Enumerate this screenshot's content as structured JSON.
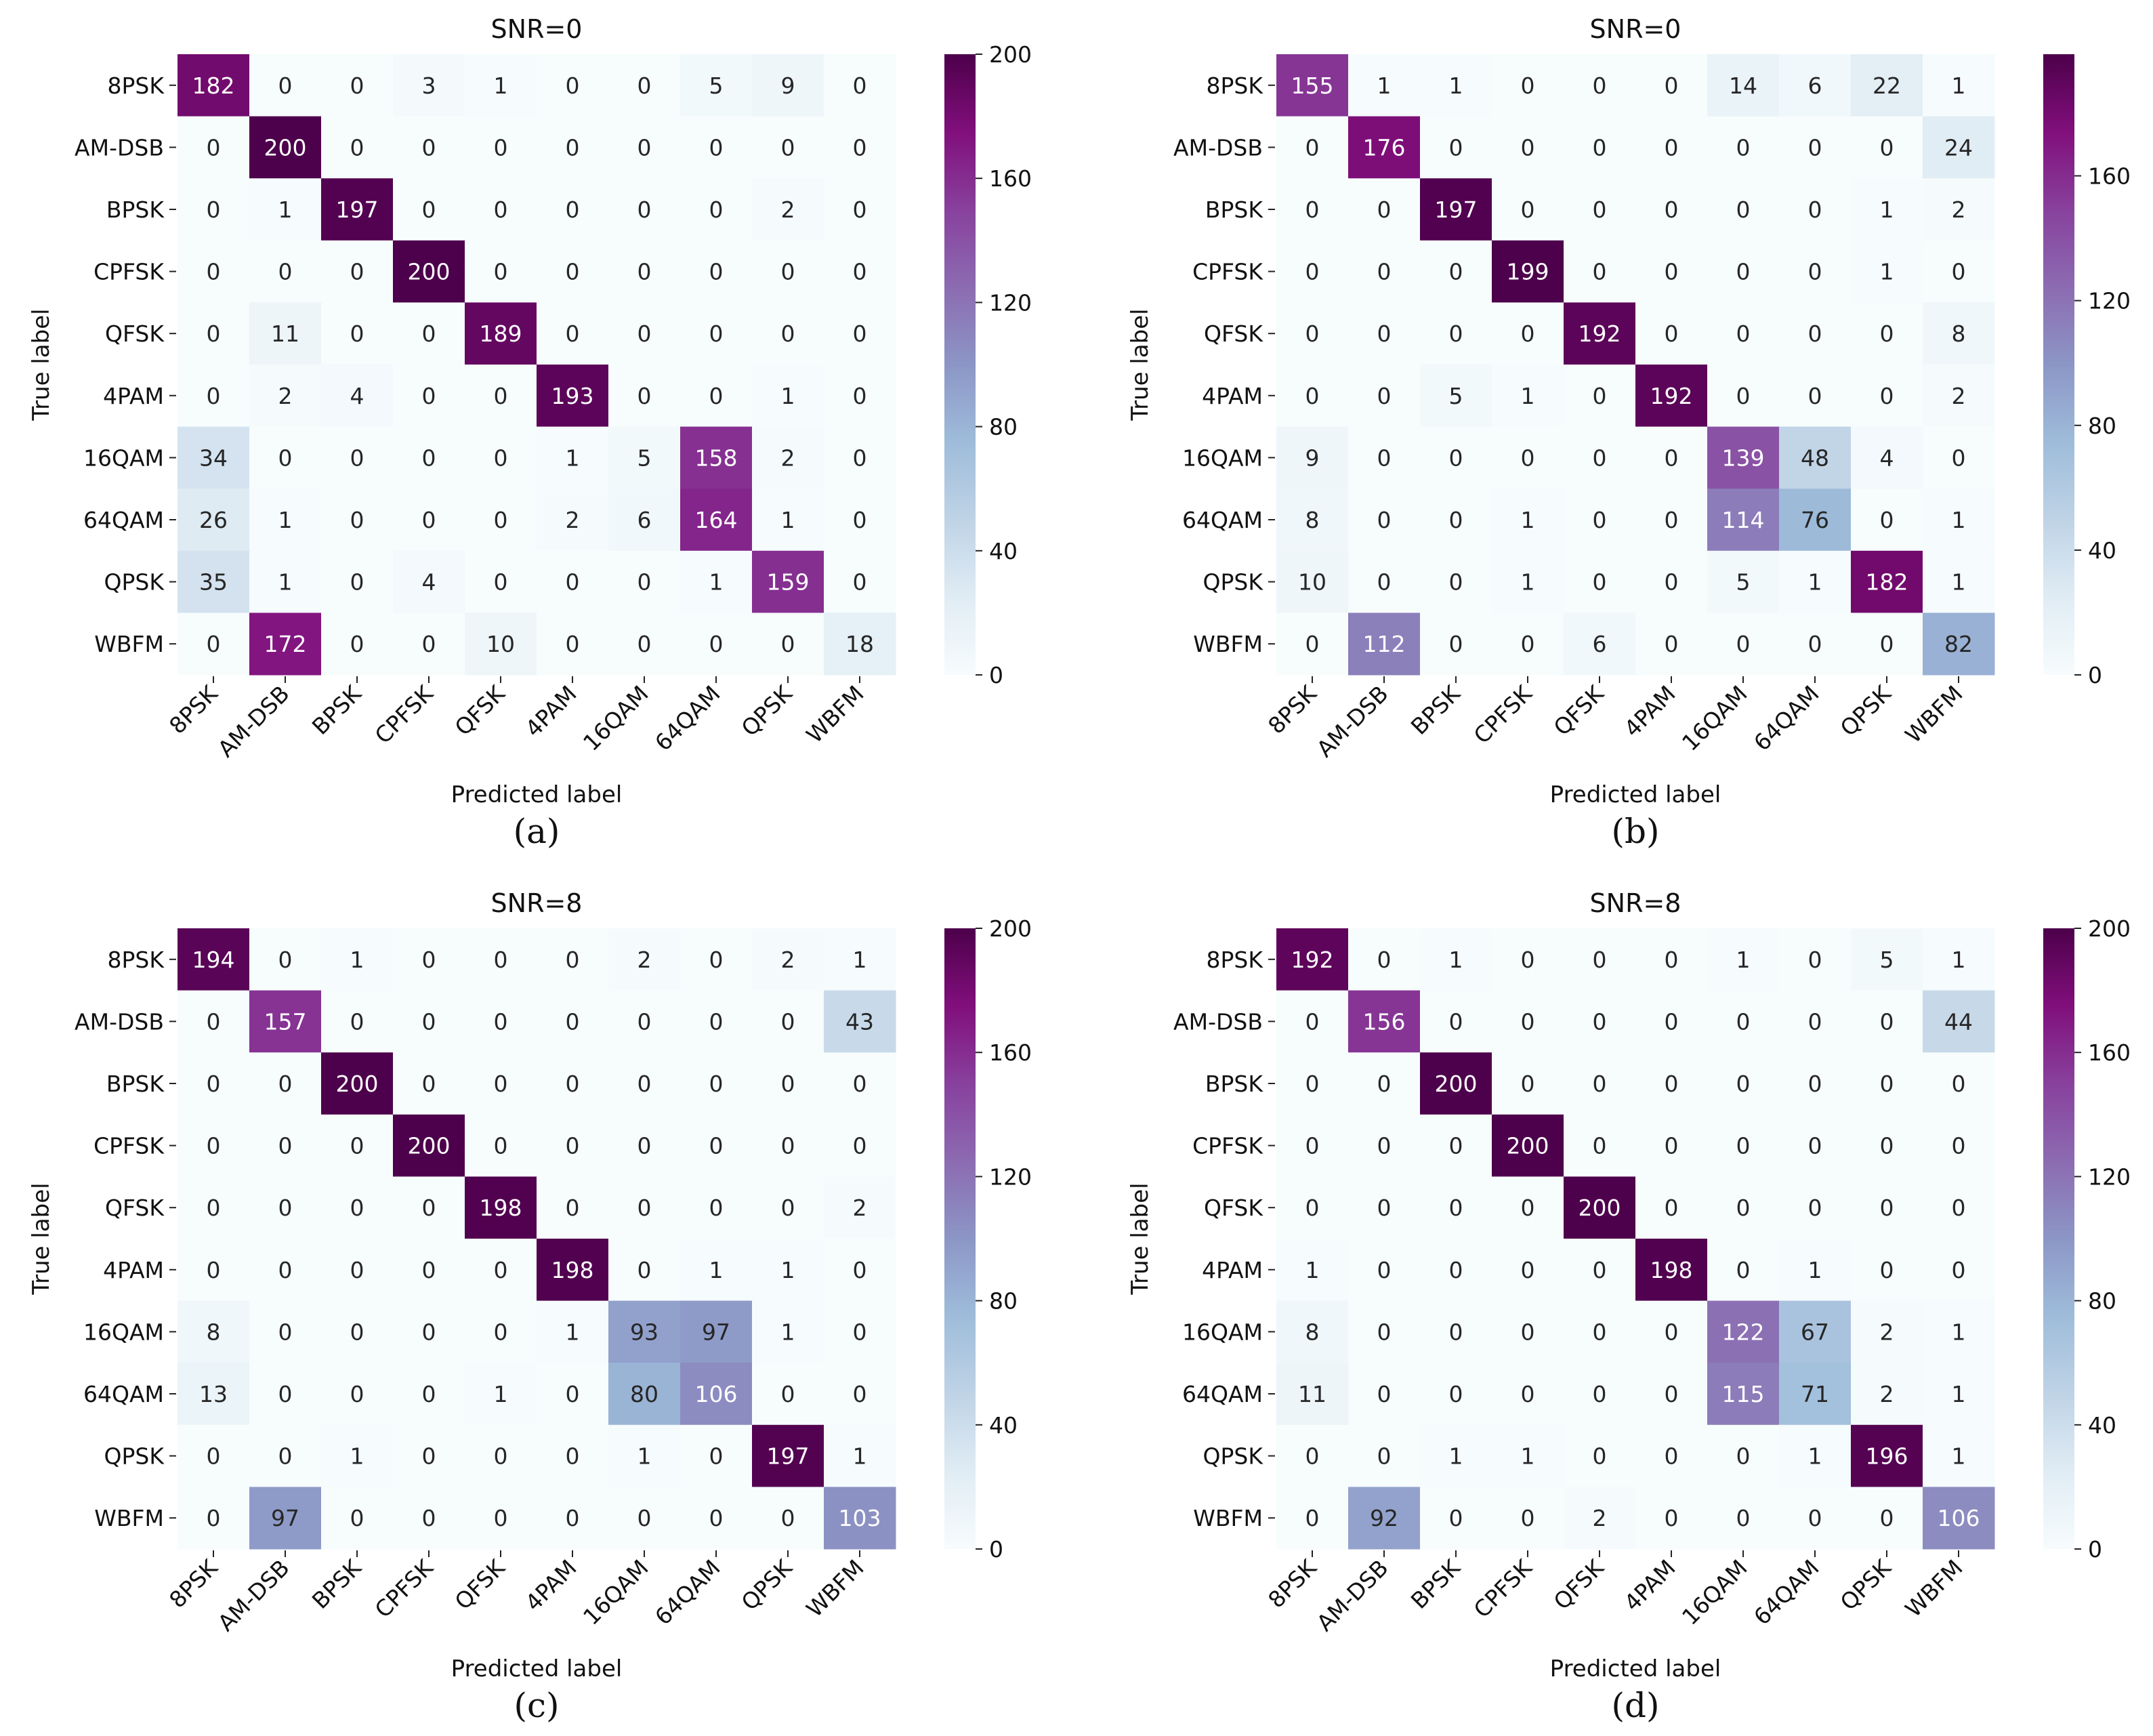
{
  "figure": {
    "categories": [
      "8PSK",
      "AM-DSB",
      "BPSK",
      "CPFSK",
      "QFSK",
      "4PAM",
      "16QAM",
      "64QAM",
      "QPSK",
      "WBFM"
    ],
    "xlabel": "Predicted label",
    "ylabel": "True label",
    "colormap": "BuPu",
    "colormap_stops": [
      "#f7fcfd",
      "#e0ecf4",
      "#bfd3e6",
      "#9ebcda",
      "#8c96c6",
      "#8c6bb1",
      "#88419d",
      "#810f7c",
      "#4d004b"
    ]
  },
  "chart_data": [
    {
      "type": "heatmap",
      "panel": "(a)",
      "title": "SNR=0",
      "xlabel": "Predicted label",
      "ylabel": "True label",
      "x_categories": [
        "8PSK",
        "AM-DSB",
        "BPSK",
        "CPFSK",
        "QFSK",
        "4PAM",
        "16QAM",
        "64QAM",
        "QPSK",
        "WBFM"
      ],
      "y_categories": [
        "8PSK",
        "AM-DSB",
        "BPSK",
        "CPFSK",
        "QFSK",
        "4PAM",
        "16QAM",
        "64QAM",
        "QPSK",
        "WBFM"
      ],
      "values": [
        [
          182,
          0,
          0,
          3,
          1,
          0,
          0,
          5,
          9,
          0
        ],
        [
          0,
          200,
          0,
          0,
          0,
          0,
          0,
          0,
          0,
          0
        ],
        [
          0,
          1,
          197,
          0,
          0,
          0,
          0,
          0,
          2,
          0
        ],
        [
          0,
          0,
          0,
          200,
          0,
          0,
          0,
          0,
          0,
          0
        ],
        [
          0,
          11,
          0,
          0,
          189,
          0,
          0,
          0,
          0,
          0
        ],
        [
          0,
          2,
          4,
          0,
          0,
          193,
          0,
          0,
          1,
          0
        ],
        [
          34,
          0,
          0,
          0,
          0,
          1,
          5,
          158,
          2,
          0
        ],
        [
          26,
          1,
          0,
          0,
          0,
          2,
          6,
          164,
          1,
          0
        ],
        [
          35,
          1,
          0,
          4,
          0,
          0,
          0,
          1,
          159,
          0
        ],
        [
          0,
          172,
          0,
          0,
          10,
          0,
          0,
          0,
          0,
          18
        ]
      ],
      "colorbar": {
        "vmin": 0,
        "vmax": 200,
        "ticks": [
          0,
          40,
          80,
          120,
          160,
          200
        ]
      }
    },
    {
      "type": "heatmap",
      "panel": "(b)",
      "title": "SNR=0",
      "xlabel": "Predicted label",
      "ylabel": "True label",
      "x_categories": [
        "8PSK",
        "AM-DSB",
        "BPSK",
        "CPFSK",
        "QFSK",
        "4PAM",
        "16QAM",
        "64QAM",
        "QPSK",
        "WBFM"
      ],
      "y_categories": [
        "8PSK",
        "AM-DSB",
        "BPSK",
        "CPFSK",
        "QFSK",
        "4PAM",
        "16QAM",
        "64QAM",
        "QPSK",
        "WBFM"
      ],
      "values": [
        [
          155,
          1,
          1,
          0,
          0,
          0,
          14,
          6,
          22,
          1
        ],
        [
          0,
          176,
          0,
          0,
          0,
          0,
          0,
          0,
          0,
          24
        ],
        [
          0,
          0,
          197,
          0,
          0,
          0,
          0,
          0,
          1,
          2
        ],
        [
          0,
          0,
          0,
          199,
          0,
          0,
          0,
          0,
          1,
          0
        ],
        [
          0,
          0,
          0,
          0,
          192,
          0,
          0,
          0,
          0,
          8
        ],
        [
          0,
          0,
          5,
          1,
          0,
          192,
          0,
          0,
          0,
          2
        ],
        [
          9,
          0,
          0,
          0,
          0,
          0,
          139,
          48,
          4,
          0
        ],
        [
          8,
          0,
          0,
          1,
          0,
          0,
          114,
          76,
          0,
          1
        ],
        [
          10,
          0,
          0,
          1,
          0,
          0,
          5,
          1,
          182,
          1
        ],
        [
          0,
          112,
          0,
          0,
          6,
          0,
          0,
          0,
          0,
          82
        ]
      ],
      "colorbar": {
        "vmin": 0,
        "vmax": 199,
        "ticks": [
          0,
          40,
          80,
          120,
          160
        ]
      }
    },
    {
      "type": "heatmap",
      "panel": "(c)",
      "title": "SNR=8",
      "xlabel": "Predicted label",
      "ylabel": "True label",
      "x_categories": [
        "8PSK",
        "AM-DSB",
        "BPSK",
        "CPFSK",
        "QFSK",
        "4PAM",
        "16QAM",
        "64QAM",
        "QPSK",
        "WBFM"
      ],
      "y_categories": [
        "8PSK",
        "AM-DSB",
        "BPSK",
        "CPFSK",
        "QFSK",
        "4PAM",
        "16QAM",
        "64QAM",
        "QPSK",
        "WBFM"
      ],
      "values": [
        [
          194,
          0,
          1,
          0,
          0,
          0,
          2,
          0,
          2,
          1
        ],
        [
          0,
          157,
          0,
          0,
          0,
          0,
          0,
          0,
          0,
          43
        ],
        [
          0,
          0,
          200,
          0,
          0,
          0,
          0,
          0,
          0,
          0
        ],
        [
          0,
          0,
          0,
          200,
          0,
          0,
          0,
          0,
          0,
          0
        ],
        [
          0,
          0,
          0,
          0,
          198,
          0,
          0,
          0,
          0,
          2
        ],
        [
          0,
          0,
          0,
          0,
          0,
          198,
          0,
          1,
          1,
          0
        ],
        [
          8,
          0,
          0,
          0,
          0,
          1,
          93,
          97,
          1,
          0
        ],
        [
          13,
          0,
          0,
          0,
          1,
          0,
          80,
          106,
          0,
          0
        ],
        [
          0,
          0,
          1,
          0,
          0,
          0,
          1,
          0,
          197,
          1
        ],
        [
          0,
          97,
          0,
          0,
          0,
          0,
          0,
          0,
          0,
          103
        ]
      ],
      "colorbar": {
        "vmin": 0,
        "vmax": 200,
        "ticks": [
          0,
          40,
          80,
          120,
          160,
          200
        ]
      }
    },
    {
      "type": "heatmap",
      "panel": "(d)",
      "title": "SNR=8",
      "xlabel": "Predicted label",
      "ylabel": "True label",
      "x_categories": [
        "8PSK",
        "AM-DSB",
        "BPSK",
        "CPFSK",
        "QFSK",
        "4PAM",
        "16QAM",
        "64QAM",
        "QPSK",
        "WBFM"
      ],
      "y_categories": [
        "8PSK",
        "AM-DSB",
        "BPSK",
        "CPFSK",
        "QFSK",
        "4PAM",
        "16QAM",
        "64QAM",
        "QPSK",
        "WBFM"
      ],
      "values": [
        [
          192,
          0,
          1,
          0,
          0,
          0,
          1,
          0,
          5,
          1
        ],
        [
          0,
          156,
          0,
          0,
          0,
          0,
          0,
          0,
          0,
          44
        ],
        [
          0,
          0,
          200,
          0,
          0,
          0,
          0,
          0,
          0,
          0
        ],
        [
          0,
          0,
          0,
          200,
          0,
          0,
          0,
          0,
          0,
          0
        ],
        [
          0,
          0,
          0,
          0,
          200,
          0,
          0,
          0,
          0,
          0
        ],
        [
          1,
          0,
          0,
          0,
          0,
          198,
          0,
          1,
          0,
          0
        ],
        [
          8,
          0,
          0,
          0,
          0,
          0,
          122,
          67,
          2,
          1
        ],
        [
          11,
          0,
          0,
          0,
          0,
          0,
          115,
          71,
          2,
          1
        ],
        [
          0,
          0,
          1,
          1,
          0,
          0,
          0,
          1,
          196,
          1
        ],
        [
          0,
          92,
          0,
          0,
          2,
          0,
          0,
          0,
          0,
          106
        ]
      ],
      "colorbar": {
        "vmin": 0,
        "vmax": 200,
        "ticks": [
          0,
          40,
          80,
          120,
          160,
          200
        ]
      }
    }
  ]
}
